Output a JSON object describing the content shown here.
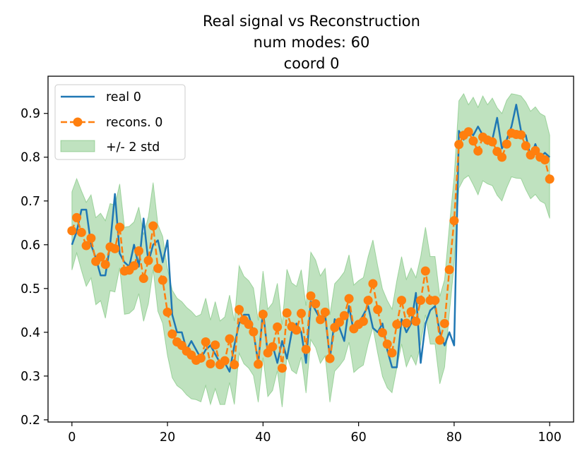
{
  "chart_data": {
    "type": "line",
    "title_lines": [
      "Real signal vs Reconstruction",
      "num modes: 60",
      "coord 0"
    ],
    "xlabel": "",
    "ylabel": "",
    "xlim": [
      -5,
      105
    ],
    "ylim": [
      0.195,
      0.985
    ],
    "xticks": [
      0,
      20,
      40,
      60,
      80,
      100
    ],
    "yticks": [
      0.2,
      0.3,
      0.4,
      0.5,
      0.6,
      0.7,
      0.8,
      0.9
    ],
    "xtick_labels": [
      "0",
      "20",
      "40",
      "60",
      "80",
      "100"
    ],
    "ytick_labels": [
      "0.2",
      "0.3",
      "0.4",
      "0.5",
      "0.6",
      "0.7",
      "0.8",
      "0.9"
    ],
    "grid": false,
    "legend": {
      "location": "top-left",
      "entries": [
        "real 0",
        "recons. 0",
        "+/- 2 std"
      ]
    },
    "colors": {
      "real": "#1f77b4",
      "recons": "#ff7f0e",
      "band_fill": "#2ca02c",
      "band_edge": "#2ca02c"
    },
    "x": [
      0,
      1,
      2,
      3,
      4,
      5,
      6,
      7,
      8,
      9,
      10,
      11,
      12,
      13,
      14,
      15,
      16,
      17,
      18,
      19,
      20,
      21,
      22,
      23,
      24,
      25,
      26,
      27,
      28,
      29,
      30,
      31,
      32,
      33,
      34,
      35,
      36,
      37,
      38,
      39,
      40,
      41,
      42,
      43,
      44,
      45,
      46,
      47,
      48,
      49,
      50,
      51,
      52,
      53,
      54,
      55,
      56,
      57,
      58,
      59,
      60,
      61,
      62,
      63,
      64,
      65,
      66,
      67,
      68,
      69,
      70,
      71,
      72,
      73,
      74,
      75,
      76,
      77,
      78,
      79,
      80,
      81,
      82,
      83,
      84,
      85,
      86,
      87,
      88,
      89,
      90,
      91,
      92,
      93,
      94,
      95,
      96,
      97,
      98,
      99,
      100
    ],
    "series": [
      {
        "name": "real 0",
        "style": "solid",
        "values": [
          0.6,
          0.63,
          0.68,
          0.68,
          0.6,
          0.57,
          0.53,
          0.53,
          0.6,
          0.716,
          0.58,
          0.56,
          0.55,
          0.6,
          0.55,
          0.66,
          0.56,
          0.6,
          0.61,
          0.56,
          0.61,
          0.44,
          0.4,
          0.4,
          0.36,
          0.38,
          0.36,
          0.34,
          0.36,
          0.37,
          0.35,
          0.33,
          0.33,
          0.31,
          0.37,
          0.42,
          0.44,
          0.44,
          0.4,
          0.33,
          0.45,
          0.35,
          0.37,
          0.33,
          0.38,
          0.34,
          0.4,
          0.42,
          0.4,
          0.33,
          0.47,
          0.45,
          0.43,
          0.44,
          0.34,
          0.43,
          0.41,
          0.38,
          0.46,
          0.4,
          0.42,
          0.44,
          0.46,
          0.41,
          0.4,
          0.42,
          0.36,
          0.32,
          0.32,
          0.43,
          0.4,
          0.42,
          0.49,
          0.33,
          0.42,
          0.45,
          0.46,
          0.4,
          0.37,
          0.4,
          0.37,
          0.86,
          0.84,
          0.86,
          0.85,
          0.87,
          0.85,
          0.83,
          0.84,
          0.89,
          0.82,
          0.84,
          0.87,
          0.92,
          0.86,
          0.85,
          0.8,
          0.83,
          0.8,
          0.81,
          0.8
        ]
      },
      {
        "name": "recons. 0",
        "style": "dashed-markers",
        "values": [
          0.632,
          0.662,
          0.628,
          0.598,
          0.615,
          0.562,
          0.572,
          0.555,
          0.595,
          0.591,
          0.64,
          0.54,
          0.542,
          0.552,
          0.586,
          0.523,
          0.564,
          0.643,
          0.546,
          0.519,
          0.446,
          0.396,
          0.378,
          0.37,
          0.357,
          0.348,
          0.336,
          0.341,
          0.378,
          0.328,
          0.371,
          0.326,
          0.335,
          0.385,
          0.326,
          0.452,
          0.428,
          0.418,
          0.401,
          0.327,
          0.441,
          0.353,
          0.367,
          0.412,
          0.318,
          0.444,
          0.413,
          0.405,
          0.443,
          0.361,
          0.483,
          0.465,
          0.429,
          0.446,
          0.34,
          0.411,
          0.423,
          0.438,
          0.477,
          0.408,
          0.418,
          0.425,
          0.473,
          0.511,
          0.452,
          0.399,
          0.373,
          0.353,
          0.418,
          0.473,
          0.421,
          0.447,
          0.425,
          0.473,
          0.54,
          0.473,
          0.473,
          0.382,
          0.42,
          0.543,
          0.655,
          0.829,
          0.85,
          0.858,
          0.837,
          0.814,
          0.846,
          0.839,
          0.835,
          0.813,
          0.8,
          0.83,
          0.855,
          0.852,
          0.851,
          0.826,
          0.805,
          0.815,
          0.8,
          0.794,
          0.75
        ]
      }
    ],
    "band": {
      "name": "+/- 2 std",
      "upper": [
        0.721,
        0.751,
        0.723,
        0.697,
        0.714,
        0.662,
        0.672,
        0.655,
        0.694,
        0.691,
        0.739,
        0.64,
        0.642,
        0.652,
        0.686,
        0.623,
        0.664,
        0.742,
        0.646,
        0.619,
        0.546,
        0.496,
        0.478,
        0.47,
        0.457,
        0.448,
        0.436,
        0.441,
        0.478,
        0.428,
        0.47,
        0.426,
        0.435,
        0.485,
        0.426,
        0.552,
        0.528,
        0.518,
        0.501,
        0.427,
        0.54,
        0.453,
        0.467,
        0.512,
        0.418,
        0.544,
        0.513,
        0.505,
        0.543,
        0.461,
        0.583,
        0.565,
        0.529,
        0.546,
        0.44,
        0.511,
        0.523,
        0.538,
        0.577,
        0.508,
        0.518,
        0.525,
        0.573,
        0.611,
        0.552,
        0.499,
        0.473,
        0.453,
        0.518,
        0.573,
        0.521,
        0.547,
        0.525,
        0.573,
        0.64,
        0.573,
        0.573,
        0.482,
        0.52,
        0.643,
        0.755,
        0.929,
        0.945,
        0.92,
        0.937,
        0.914,
        0.94,
        0.92,
        0.935,
        0.913,
        0.9,
        0.93,
        0.945,
        0.943,
        0.94,
        0.926,
        0.905,
        0.915,
        0.9,
        0.894,
        0.85
      ],
      "lower": [
        0.542,
        0.581,
        0.541,
        0.505,
        0.524,
        0.463,
        0.472,
        0.432,
        0.495,
        0.492,
        0.547,
        0.441,
        0.443,
        0.453,
        0.488,
        0.425,
        0.465,
        0.543,
        0.448,
        0.42,
        0.347,
        0.296,
        0.278,
        0.27,
        0.257,
        0.248,
        0.246,
        0.241,
        0.278,
        0.235,
        0.271,
        0.235,
        0.235,
        0.285,
        0.235,
        0.352,
        0.328,
        0.318,
        0.301,
        0.24,
        0.342,
        0.253,
        0.267,
        0.312,
        0.229,
        0.344,
        0.313,
        0.305,
        0.343,
        0.261,
        0.383,
        0.365,
        0.329,
        0.346,
        0.24,
        0.311,
        0.323,
        0.338,
        0.377,
        0.308,
        0.318,
        0.325,
        0.373,
        0.411,
        0.352,
        0.299,
        0.273,
        0.262,
        0.318,
        0.373,
        0.321,
        0.347,
        0.325,
        0.373,
        0.44,
        0.373,
        0.373,
        0.282,
        0.32,
        0.443,
        0.555,
        0.729,
        0.75,
        0.758,
        0.737,
        0.714,
        0.746,
        0.739,
        0.735,
        0.713,
        0.7,
        0.73,
        0.755,
        0.752,
        0.751,
        0.726,
        0.705,
        0.715,
        0.7,
        0.694,
        0.66
      ]
    }
  }
}
